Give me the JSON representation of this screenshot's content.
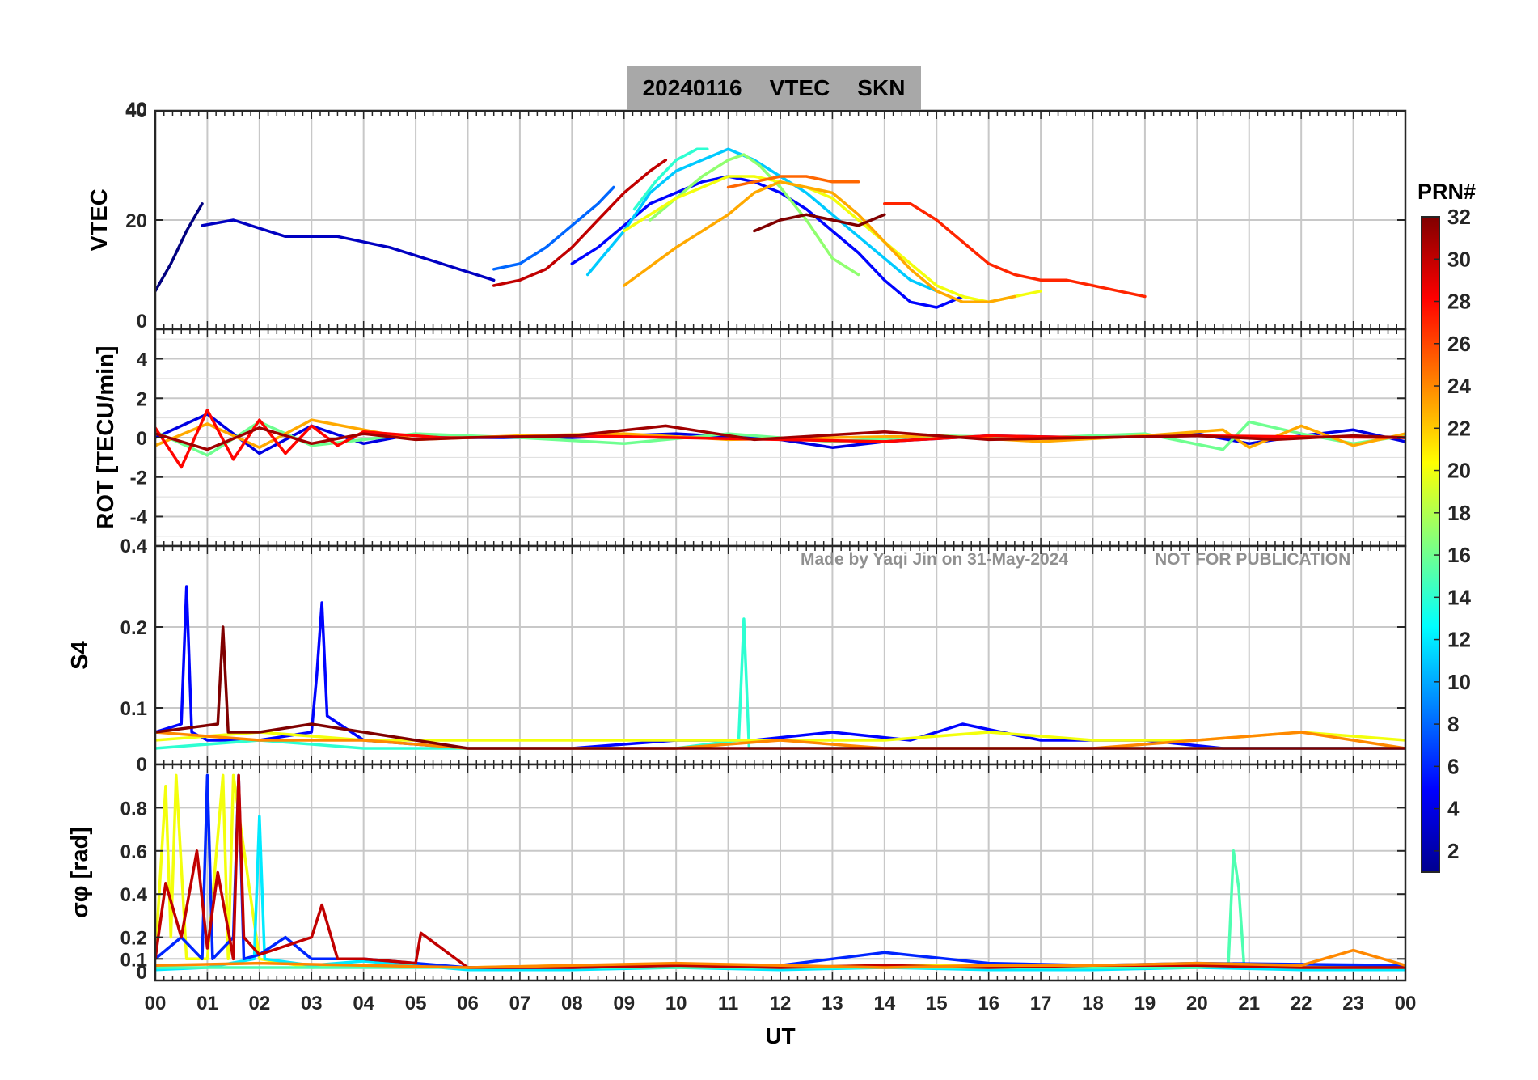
{
  "title": {
    "date": "20240116",
    "quantity": "VTEC",
    "station": "SKN"
  },
  "watermark": {
    "author": "Made by Yaqi Jin on 31-May-2024",
    "notice": "NOT FOR PUBLICATION"
  },
  "colorbar": {
    "label": "PRN#",
    "ticks": [
      "2",
      "4",
      "6",
      "8",
      "10",
      "12",
      "14",
      "16",
      "18",
      "20",
      "22",
      "24",
      "26",
      "28",
      "30",
      "32"
    ],
    "range": [
      1,
      32
    ],
    "colormap": "jet",
    "colors": [
      "#00008f",
      "#0000ff",
      "#0080ff",
      "#00ffff",
      "#80ff80",
      "#ffff00",
      "#ff8000",
      "#ff0000",
      "#800000"
    ]
  },
  "colors": {
    "title_bg": "#a8a8a8",
    "grid": "#c8c8c8",
    "watermark": "#909090"
  },
  "chart_data": [
    {
      "id": "vtec",
      "type": "line",
      "ylabel": "VTEC",
      "ylim": [
        0,
        40
      ],
      "yticks": [
        0,
        20,
        40
      ],
      "xlim": [
        0,
        24
      ],
      "grid": true,
      "series": [
        {
          "prn": 1,
          "x": [
            0.0,
            0.3,
            0.6,
            0.9
          ],
          "y": [
            7,
            12,
            18,
            23
          ]
        },
        {
          "prn": 3,
          "x": [
            0.9,
            1.5,
            2.5,
            3.5,
            4.5,
            5.5,
            6.5
          ],
          "y": [
            19,
            20,
            17,
            17,
            15,
            12,
            9
          ]
        },
        {
          "prn": 5,
          "x": [
            8.0,
            8.5,
            9.0,
            9.5,
            10.0,
            10.5,
            11.0,
            11.5,
            12.0,
            12.5,
            13.0,
            13.5,
            14.0,
            14.5,
            15.0,
            15.5
          ],
          "y": [
            12,
            15,
            19,
            23,
            25,
            27,
            28,
            27,
            25,
            22,
            18,
            14,
            9,
            5,
            4,
            6
          ]
        },
        {
          "prn": 8,
          "x": [
            6.5,
            7.0,
            7.5,
            8.0,
            8.5,
            8.8
          ],
          "y": [
            11,
            12,
            15,
            19,
            23,
            26
          ]
        },
        {
          "prn": 11,
          "x": [
            8.3,
            9.0,
            9.5,
            10.0,
            10.5,
            11.0,
            11.5,
            12.0,
            12.5,
            13.0,
            13.5,
            14.0,
            14.5,
            15.0
          ],
          "y": [
            10,
            18,
            25,
            29,
            31,
            33,
            31,
            28,
            25,
            21,
            17,
            13,
            9,
            7
          ]
        },
        {
          "prn": 14,
          "x": [
            9.2,
            9.6,
            10.0,
            10.4,
            10.6
          ],
          "y": [
            22,
            27,
            31,
            33,
            33
          ]
        },
        {
          "prn": 17,
          "x": [
            9.5,
            10.0,
            10.5,
            11.0,
            11.3,
            11.6,
            12.0,
            12.5,
            13.0,
            13.5
          ],
          "y": [
            20,
            24,
            28,
            31,
            32,
            30,
            26,
            20,
            13,
            10
          ]
        },
        {
          "prn": 20,
          "x": [
            9.0,
            10.0,
            11.0,
            11.5,
            12.0,
            12.5,
            13.0,
            13.5,
            14.0,
            14.5,
            15.0,
            15.5,
            16.0,
            16.5,
            17.0
          ],
          "y": [
            18,
            24,
            28,
            28,
            27,
            26,
            24,
            20,
            16,
            12,
            8,
            6,
            5,
            6,
            7
          ]
        },
        {
          "prn": 23,
          "x": [
            9.0,
            10.0,
            11.0,
            11.5,
            12.0,
            12.5,
            13.0,
            13.5,
            14.0,
            14.5,
            15.0,
            15.5,
            16.0,
            16.5
          ],
          "y": [
            8,
            15,
            21,
            25,
            27,
            26,
            25,
            21,
            16,
            11,
            7,
            5,
            5,
            6
          ]
        },
        {
          "prn": 25,
          "x": [
            11.0,
            11.5,
            12.0,
            12.5,
            13.0,
            13.5
          ],
          "y": [
            26,
            27,
            28,
            28,
            27,
            27
          ]
        },
        {
          "prn": 27,
          "x": [
            14.0,
            14.5,
            15.0,
            15.5,
            16.0,
            16.5,
            17.0,
            17.5,
            18.0,
            18.5,
            19.0
          ],
          "y": [
            23,
            23,
            20,
            16,
            12,
            10,
            9,
            9,
            8,
            7,
            6
          ]
        },
        {
          "prn": 30,
          "x": [
            6.5,
            7.0,
            7.5,
            8.0,
            8.5,
            9.0,
            9.5,
            9.8
          ],
          "y": [
            8,
            9,
            11,
            15,
            20,
            25,
            29,
            31
          ]
        },
        {
          "prn": 32,
          "x": [
            11.5,
            12.0,
            12.5,
            13.0,
            13.5,
            14.0
          ],
          "y": [
            18,
            20,
            21,
            20,
            19,
            21
          ]
        }
      ]
    },
    {
      "id": "rot",
      "type": "line",
      "ylabel": "ROT [TECU/min]",
      "ylim": [
        -5.5,
        5.5
      ],
      "yticks": [
        -4,
        -2,
        0,
        2,
        4
      ],
      "xlim": [
        0,
        24
      ],
      "grid": true,
      "series": [
        {
          "prn": 4,
          "x": [
            0,
            1,
            2,
            3,
            4,
            5,
            6,
            8,
            10,
            12,
            13,
            14,
            16,
            18,
            20,
            21,
            22,
            23,
            24
          ],
          "y": [
            0,
            1.2,
            -0.8,
            0.6,
            -0.3,
            0.2,
            0,
            0,
            0.2,
            -0.1,
            -0.5,
            -0.2,
            0.1,
            0,
            0.2,
            -0.3,
            0.1,
            0.4,
            -0.2
          ]
        },
        {
          "prn": 16,
          "x": [
            0,
            1,
            2,
            3,
            5,
            7,
            9,
            11,
            13,
            15,
            17,
            19,
            20.5,
            21,
            22,
            23,
            24
          ],
          "y": [
            0.3,
            -0.9,
            0.8,
            -0.4,
            0.2,
            0,
            -0.3,
            0.2,
            -0.2,
            0.1,
            0,
            0.2,
            -0.6,
            0.8,
            0.2,
            -0.3,
            0.1
          ]
        },
        {
          "prn": 23,
          "x": [
            0,
            1,
            2,
            3,
            5,
            7,
            9,
            11,
            13,
            15,
            17,
            19,
            20.5,
            21,
            22,
            23,
            24
          ],
          "y": [
            -0.4,
            0.7,
            -0.5,
            0.9,
            -0.1,
            0.1,
            0.2,
            -0.1,
            0,
            0.1,
            -0.2,
            0.1,
            0.4,
            -0.5,
            0.6,
            -0.4,
            0.2
          ]
        },
        {
          "prn": 28,
          "x": [
            0,
            0.5,
            1,
            1.5,
            2,
            2.5,
            3,
            3.5,
            4,
            5,
            5.5,
            6,
            8,
            10,
            12,
            14,
            16,
            18,
            20,
            24
          ],
          "y": [
            0.5,
            -1.5,
            1.4,
            -1.1,
            0.9,
            -0.8,
            0.6,
            -0.4,
            0.3,
            0.1,
            0,
            0,
            0.1,
            0,
            -0.1,
            -0.2,
            0.1,
            0,
            0.1,
            0
          ]
        },
        {
          "prn": 31,
          "x": [
            0,
            1,
            2,
            3,
            4,
            5,
            6,
            8,
            9.8,
            11.5,
            14,
            16,
            18,
            20,
            21.5,
            23,
            24
          ],
          "y": [
            0.2,
            -0.6,
            0.5,
            -0.3,
            0.2,
            -0.1,
            0,
            0.1,
            0.6,
            -0.1,
            0.3,
            -0.1,
            0,
            0.1,
            -0.1,
            0.1,
            0
          ]
        }
      ]
    },
    {
      "id": "s4",
      "type": "line",
      "ylabel": "S4",
      "ylim": [
        0.03,
        0.3
      ],
      "yticks": [
        0.1,
        0.2
      ],
      "ytick_labels": [
        "0.1",
        "0.2"
      ],
      "top_label": "0.4",
      "xlim": [
        0,
        24
      ],
      "grid": true,
      "series": [
        {
          "prn": 5,
          "x": [
            0,
            0.5,
            0.6,
            0.7,
            1,
            2,
            3,
            3.1,
            3.2,
            3.3,
            4,
            6,
            8,
            10,
            11.5,
            13,
            14.5,
            15.5,
            17,
            19,
            20.5,
            22,
            24
          ],
          "y": [
            0.07,
            0.08,
            0.25,
            0.07,
            0.06,
            0.06,
            0.07,
            0.14,
            0.23,
            0.09,
            0.06,
            0.05,
            0.05,
            0.06,
            0.06,
            0.07,
            0.06,
            0.08,
            0.06,
            0.06,
            0.05,
            0.05,
            0.05
          ]
        },
        {
          "prn": 14,
          "x": [
            0,
            2,
            4,
            6,
            8,
            10,
            11.2,
            11.3,
            11.4,
            13,
            15,
            17,
            19,
            21,
            23,
            24
          ],
          "y": [
            0.05,
            0.06,
            0.05,
            0.05,
            0.05,
            0.05,
            0.06,
            0.21,
            0.05,
            0.05,
            0.05,
            0.05,
            0.05,
            0.05,
            0.05,
            0.05
          ]
        },
        {
          "prn": 20,
          "x": [
            0,
            2,
            4,
            6,
            8,
            10,
            12,
            14,
            16,
            18,
            20,
            22,
            24
          ],
          "y": [
            0.06,
            0.07,
            0.06,
            0.06,
            0.06,
            0.06,
            0.06,
            0.06,
            0.07,
            0.06,
            0.06,
            0.07,
            0.06
          ]
        },
        {
          "prn": 24,
          "x": [
            0,
            2,
            4,
            6,
            8,
            10,
            12,
            14,
            16,
            18,
            20,
            22,
            23,
            24
          ],
          "y": [
            0.07,
            0.06,
            0.06,
            0.05,
            0.05,
            0.05,
            0.06,
            0.05,
            0.05,
            0.05,
            0.06,
            0.07,
            0.06,
            0.05
          ]
        },
        {
          "prn": 32,
          "x": [
            0,
            1.2,
            1.3,
            1.4,
            2,
            3,
            4,
            6,
            8,
            10,
            12,
            14,
            16,
            18,
            20,
            22,
            24
          ],
          "y": [
            0.07,
            0.08,
            0.2,
            0.07,
            0.07,
            0.08,
            0.07,
            0.05,
            0.05,
            0.05,
            0.05,
            0.05,
            0.05,
            0.05,
            0.05,
            0.05,
            0.05
          ]
        }
      ]
    },
    {
      "id": "sigma_phi",
      "type": "line",
      "ylabel": "σφ [rad]",
      "ylim": [
        0,
        1.0
      ],
      "yticks": [
        0,
        0.1,
        0.2,
        0.4,
        0.6,
        0.8
      ],
      "ytick_labels": [
        "0",
        "0.1",
        "0.2",
        "0.4",
        "0.6",
        "0.8"
      ],
      "top_label": "0",
      "xlim": [
        0,
        24
      ],
      "xlabel": "UT",
      "xticks": [
        "00",
        "01",
        "02",
        "03",
        "04",
        "05",
        "06",
        "07",
        "08",
        "09",
        "10",
        "11",
        "12",
        "13",
        "14",
        "15",
        "16",
        "17",
        "18",
        "19",
        "20",
        "21",
        "22",
        "23",
        "00"
      ],
      "grid": true,
      "series": [
        {
          "prn": 20,
          "x": [
            0,
            0.2,
            0.3,
            0.4,
            0.6,
            1.0,
            1.3,
            1.4,
            1.5,
            2,
            3,
            4,
            6,
            8,
            10,
            12,
            14,
            16,
            18,
            20,
            22,
            24
          ],
          "y": [
            0.1,
            0.9,
            0.2,
            0.95,
            0.1,
            0.1,
            0.95,
            0.1,
            0.95,
            0.1,
            0.06,
            0.07,
            0.06,
            0.07,
            0.07,
            0.06,
            0.07,
            0.07,
            0.06,
            0.07,
            0.06,
            0.07
          ]
        },
        {
          "prn": 12,
          "x": [
            0,
            1,
            1.9,
            2.0,
            2.1,
            3,
            4,
            6,
            8,
            10,
            12,
            14,
            16,
            18,
            20,
            22,
            24
          ],
          "y": [
            0.05,
            0.06,
            0.1,
            0.76,
            0.1,
            0.07,
            0.09,
            0.05,
            0.05,
            0.06,
            0.05,
            0.06,
            0.05,
            0.05,
            0.06,
            0.05,
            0.05
          ]
        },
        {
          "prn": 15,
          "x": [
            0,
            4,
            8,
            12,
            16,
            20,
            20.6,
            20.7,
            20.8,
            20.9,
            21,
            22,
            24
          ],
          "y": [
            0.06,
            0.06,
            0.06,
            0.06,
            0.06,
            0.06,
            0.07,
            0.6,
            0.43,
            0.08,
            0.07,
            0.06,
            0.06
          ]
        },
        {
          "prn": 6,
          "x": [
            0,
            0.5,
            0.9,
            1.0,
            1.1,
            1.5,
            1.6,
            1.7,
            2,
            2.5,
            3,
            4,
            6,
            8,
            10,
            12,
            13,
            14,
            16,
            18,
            20,
            24
          ],
          "y": [
            0.1,
            0.2,
            0.1,
            0.95,
            0.1,
            0.2,
            0.95,
            0.1,
            0.12,
            0.2,
            0.1,
            0.1,
            0.06,
            0.06,
            0.07,
            0.07,
            0.1,
            0.13,
            0.08,
            0.07,
            0.08,
            0.07
          ]
        },
        {
          "prn": 30,
          "x": [
            0,
            0.2,
            0.5,
            0.8,
            1.0,
            1.2,
            1.5,
            1.6,
            1.7,
            2,
            3,
            3.2,
            3.5,
            4,
            5,
            5.1,
            6,
            8,
            10,
            12,
            14,
            16,
            18,
            20,
            22,
            24
          ],
          "y": [
            0.1,
            0.45,
            0.2,
            0.6,
            0.15,
            0.5,
            0.1,
            0.95,
            0.2,
            0.12,
            0.2,
            0.35,
            0.1,
            0.1,
            0.08,
            0.22,
            0.06,
            0.06,
            0.07,
            0.06,
            0.07,
            0.06,
            0.07,
            0.07,
            0.06,
            0.06
          ]
        },
        {
          "prn": 24,
          "x": [
            0,
            2,
            4,
            6,
            8,
            10,
            12,
            14,
            16,
            18,
            20,
            22,
            23,
            24
          ],
          "y": [
            0.07,
            0.08,
            0.07,
            0.06,
            0.07,
            0.08,
            0.07,
            0.06,
            0.07,
            0.07,
            0.08,
            0.07,
            0.14,
            0.07
          ]
        }
      ]
    }
  ]
}
